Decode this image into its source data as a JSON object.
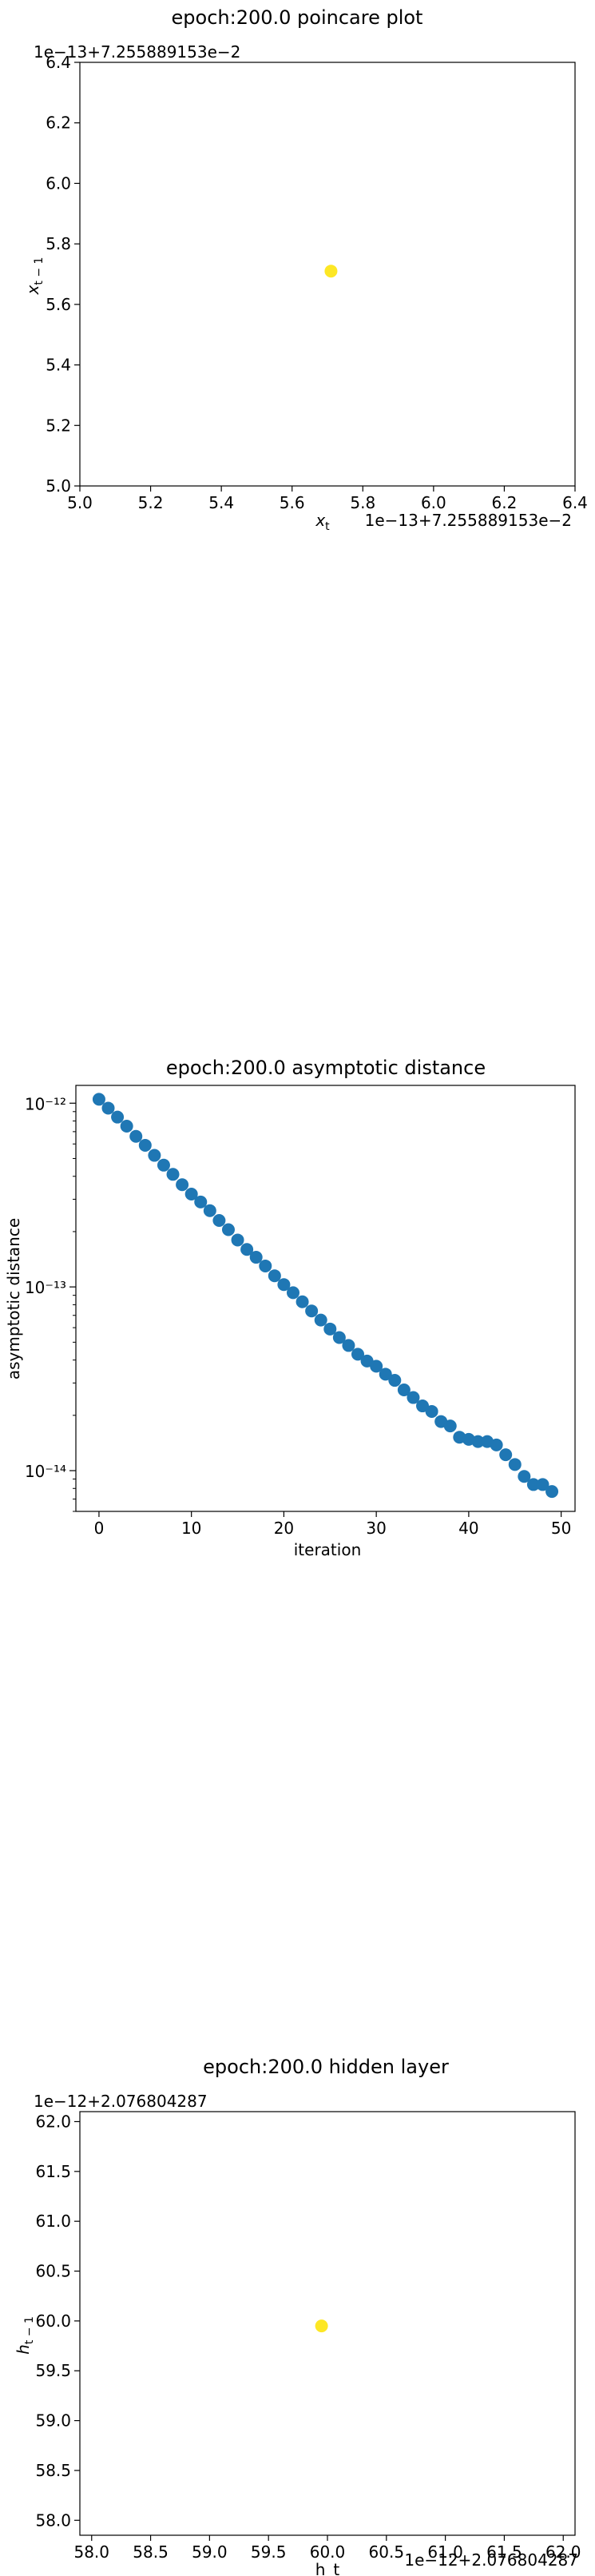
{
  "chart_data": [
    {
      "type": "scatter",
      "title": "epoch:200.0 poincare plot",
      "xlabel": "x_t",
      "ylabel": "x_{t-1}",
      "x_offset_label": "1e−13+7.255889153e−2",
      "y_offset_label": "1e−13+7.255889153e−2",
      "xlim": [
        5.0,
        6.4
      ],
      "ylim": [
        5.0,
        6.4
      ],
      "x_ticks": [
        "5.0",
        "5.2",
        "5.4",
        "5.6",
        "5.8",
        "6.0",
        "6.2",
        "6.4"
      ],
      "y_ticks": [
        "5.0",
        "5.2",
        "5.4",
        "5.6",
        "5.8",
        "6.0",
        "6.2",
        "6.4"
      ],
      "points": [
        {
          "x": 5.71,
          "y": 5.71
        }
      ],
      "color": "#fde725"
    },
    {
      "type": "scatter",
      "title": "epoch:200.0 asymptotic distance",
      "xlabel": "iteration",
      "ylabel": "asymptotic distance",
      "yscale": "log",
      "xlim": [
        -2.5,
        51.5
      ],
      "ylim": [
        6e-15,
        1.25e-12
      ],
      "x_ticks": [
        "0",
        "10",
        "20",
        "30",
        "40",
        "50"
      ],
      "y_ticks": [
        "10⁻¹²",
        "10⁻¹³",
        "10⁻¹⁴"
      ],
      "color": "#1f77b4",
      "x": [
        0,
        1,
        2,
        3,
        4,
        5,
        6,
        7,
        8,
        9,
        10,
        11,
        12,
        13,
        14,
        15,
        16,
        17,
        18,
        19,
        20,
        21,
        22,
        23,
        24,
        25,
        26,
        27,
        28,
        29,
        30,
        31,
        32,
        33,
        34,
        35,
        36,
        37,
        38,
        39,
        40,
        41,
        42,
        43,
        44,
        45,
        46,
        47,
        48,
        49
      ],
      "y": [
        1.05e-12,
        9.4e-13,
        8.4e-13,
        7.5e-13,
        6.6e-13,
        5.9e-13,
        5.2e-13,
        4.6e-13,
        4.1e-13,
        3.6e-13,
        3.2e-13,
        2.9e-13,
        2.6e-13,
        2.3e-13,
        2.05e-13,
        1.8e-13,
        1.6e-13,
        1.45e-13,
        1.3e-13,
        1.15e-13,
        1.03e-13,
        9.3e-14,
        8.3e-14,
        7.4e-14,
        6.6e-14,
        5.9e-14,
        5.3e-14,
        4.8e-14,
        4.3e-14,
        3.95e-14,
        3.7e-14,
        3.35e-14,
        3.1e-14,
        2.75e-14,
        2.5e-14,
        2.25e-14,
        2.1e-14,
        1.85e-14,
        1.75e-14,
        1.52e-14,
        1.48e-14,
        1.44e-14,
        1.44e-14,
        1.38e-14,
        1.22e-14,
        1.08e-14,
        9.3e-15,
        8.4e-15,
        8.4e-15,
        7.7e-15
      ]
    },
    {
      "type": "scatter",
      "title": "epoch:200.0 hidden layer",
      "xlabel": "h_t",
      "ylabel": "h_{t-1}",
      "x_offset_label": "1e−12+2.076804287",
      "y_offset_label": "1e−12+2.076804287",
      "xlim": [
        57.9,
        62.1
      ],
      "ylim": [
        57.85,
        62.1
      ],
      "x_ticks": [
        "58.0",
        "58.5",
        "59.0",
        "59.5",
        "60.0",
        "60.5",
        "61.0",
        "61.5",
        "62.0"
      ],
      "y_ticks": [
        "58.0",
        "58.5",
        "59.0",
        "59.5",
        "60.0",
        "60.5",
        "61.0",
        "61.5",
        "62.0"
      ],
      "points": [
        {
          "x": 59.95,
          "y": 59.95
        }
      ],
      "color": "#fde725"
    }
  ]
}
